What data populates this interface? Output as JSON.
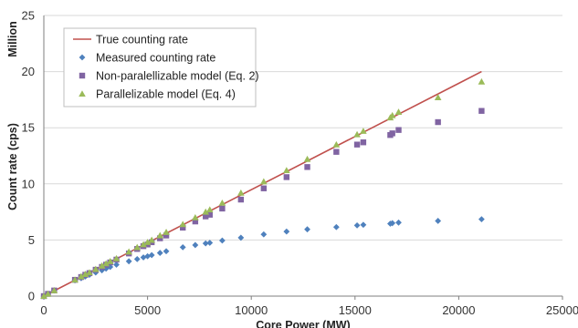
{
  "chart_data": {
    "type": "scatter",
    "ylabel": "Count rate (cps)",
    "xlabel": "Core Power (MW)",
    "y_units_label": "Million",
    "xlim": [
      0,
      25000
    ],
    "ylim": [
      0,
      25
    ],
    "x_ticks": [
      0,
      5000,
      10000,
      15000,
      20000,
      25000
    ],
    "y_ticks": [
      0,
      5,
      10,
      15,
      20,
      25
    ],
    "grid": "horizontal",
    "legend_position": "top-left",
    "series": [
      {
        "name": "True counting rate",
        "kind": "line",
        "color": "#c0504d",
        "x": [
          0,
          21100
        ],
        "y": [
          0,
          20.0
        ]
      },
      {
        "name": "Measured counting rate",
        "kind": "diamond",
        "color": "#4f81bd",
        "x": [
          0,
          200,
          500,
          1500,
          1800,
          2000,
          2200,
          2500,
          2800,
          3000,
          3200,
          3500,
          4100,
          4500,
          4800,
          5000,
          5200,
          5600,
          5900,
          6700,
          7300,
          7800,
          8000,
          8600,
          9500,
          10600,
          11700,
          12700,
          14100,
          15100,
          15400,
          16700,
          16800,
          17100,
          19000,
          21100
        ],
        "y": [
          0.0,
          0.2,
          0.5,
          1.4,
          1.6,
          1.75,
          1.9,
          2.1,
          2.3,
          2.45,
          2.6,
          2.8,
          3.1,
          3.3,
          3.45,
          3.55,
          3.65,
          3.85,
          4.0,
          4.35,
          4.55,
          4.7,
          4.75,
          4.95,
          5.2,
          5.5,
          5.75,
          5.95,
          6.15,
          6.3,
          6.35,
          6.45,
          6.5,
          6.55,
          6.7,
          6.85
        ]
      },
      {
        "name": "Non-paralellizable model (Eq. 2)",
        "kind": "square",
        "color": "#8064a2",
        "x": [
          0,
          200,
          500,
          1500,
          1800,
          2000,
          2200,
          2500,
          2800,
          3000,
          3200,
          3500,
          4100,
          4500,
          4800,
          5000,
          5200,
          5600,
          5900,
          6700,
          7300,
          7800,
          8000,
          8600,
          9500,
          10600,
          11700,
          12700,
          14100,
          15100,
          15400,
          16700,
          16800,
          17100,
          19000,
          21100
        ],
        "y": [
          0.0,
          0.2,
          0.5,
          1.45,
          1.7,
          1.9,
          2.05,
          2.35,
          2.6,
          2.8,
          3.0,
          3.25,
          3.8,
          4.2,
          4.45,
          4.6,
          4.8,
          5.15,
          5.4,
          6.1,
          6.65,
          7.1,
          7.25,
          7.8,
          8.6,
          9.6,
          10.6,
          11.5,
          12.85,
          13.5,
          13.7,
          14.35,
          14.5,
          14.8,
          15.5,
          16.5
        ]
      },
      {
        "name": "Parallelizable model (Eq. 4)",
        "kind": "triangle",
        "color": "#9bbb59",
        "x": [
          0,
          200,
          500,
          1500,
          1800,
          2000,
          2200,
          2500,
          2800,
          3000,
          3200,
          3500,
          4100,
          4500,
          4800,
          5000,
          5200,
          5600,
          5900,
          6700,
          7300,
          7800,
          8000,
          8600,
          9500,
          10600,
          11700,
          12700,
          14100,
          15100,
          15400,
          16700,
          16800,
          17100,
          19000,
          21100
        ],
        "y": [
          0.0,
          0.2,
          0.5,
          1.45,
          1.75,
          1.95,
          2.1,
          2.4,
          2.7,
          2.9,
          3.1,
          3.35,
          3.95,
          4.35,
          4.6,
          4.8,
          5.0,
          5.4,
          5.7,
          6.4,
          7.0,
          7.5,
          7.7,
          8.3,
          9.2,
          10.2,
          11.2,
          12.2,
          13.5,
          14.4,
          14.7,
          15.9,
          16.1,
          16.4,
          17.7,
          19.1
        ]
      }
    ]
  }
}
